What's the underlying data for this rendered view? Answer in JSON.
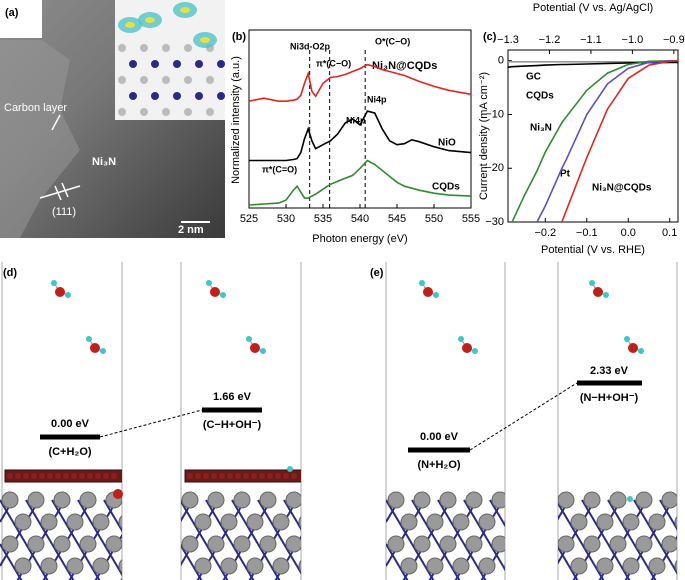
{
  "panel_a": {
    "label": "(a)",
    "carbon_layer": "Carbon layer",
    "phase": "Ni₃N",
    "plane": "(111)",
    "scale_bar": "2 nm"
  },
  "chart_data": [
    {
      "type": "line",
      "label": "(b)",
      "xlabel": "Photon energy (eV)",
      "ylabel": "Normalized intensity (a.u.)",
      "xlim": [
        525,
        555
      ],
      "xticks": [
        525,
        530,
        535,
        540,
        545,
        550,
        555
      ],
      "ylim": [
        0,
        180
      ],
      "x": [
        525,
        527,
        529,
        530,
        531,
        531.5,
        532,
        532.5,
        533,
        533.5,
        534,
        535,
        536,
        537,
        538,
        539,
        540,
        541,
        542,
        543,
        544,
        545,
        546,
        547,
        548,
        550,
        552,
        555
      ],
      "series": [
        {
          "name": "Ni₃N@CQDs",
          "color": "#e0261f",
          "values": [
            108,
            111,
            108,
            108,
            109,
            110,
            114,
            126,
            136,
            118,
            113,
            126,
            132,
            133,
            135,
            138,
            141,
            145,
            143,
            140,
            138,
            136,
            134,
            131,
            128,
            123,
            119,
            115
          ]
        },
        {
          "name": "NiO",
          "color": "#000000",
          "values": [
            48,
            48,
            48,
            48,
            49,
            50,
            56,
            70,
            80,
            68,
            60,
            64,
            68,
            75,
            86,
            90,
            84,
            98,
            96,
            80,
            68,
            64,
            65,
            69,
            67,
            62,
            58,
            56
          ]
        },
        {
          "name": "CQDs",
          "color": "#2e8b2e",
          "values": [
            3,
            4,
            5,
            8,
            18,
            22,
            16,
            10,
            10,
            12,
            14,
            19,
            24,
            27,
            30,
            33,
            40,
            48,
            44,
            38,
            32,
            26,
            22,
            20,
            18,
            15,
            13,
            12
          ]
        }
      ],
      "vlines": [
        533.2,
        535.9,
        540.7
      ],
      "annotations": [
        "Ni3d-O2p",
        "π*(C−O)",
        "O*(C−O)",
        "Ni4p",
        "Ni4p",
        "π*(C=O)"
      ]
    },
    {
      "type": "line",
      "label": "(c)",
      "xlabel": "Potential (V vs. RHE)",
      "x2label": "Potential (V vs. Ag/AgCl)",
      "ylabel": "Current density (mA cm⁻²)",
      "xlim": [
        -0.29,
        0.12
      ],
      "xticks": [
        {
          "value": -0.2,
          "label": "−0.2"
        },
        {
          "value": -0.1,
          "label": "−0.1"
        },
        {
          "value": 0,
          "label": "0.0"
        },
        0.1
      ],
      "x2lim": [
        -1.3,
        -0.89
      ],
      "x2ticks": [
        {
          "value": -1.3,
          "label": "−1.3"
        },
        {
          "value": -1.2,
          "label": "−1.2"
        },
        {
          "value": -1.1,
          "label": "−1.1"
        },
        {
          "value": -1.0,
          "label": "−1.0"
        },
        {
          "value": -0.9,
          "label": "−0.9"
        }
      ],
      "ylim": [
        -30,
        2
      ],
      "yticks": [
        {
          "value": -30,
          "label": "−30"
        },
        {
          "value": -20,
          "label": "−20"
        },
        {
          "value": -10,
          "label": "−10"
        },
        0
      ],
      "x": [
        -0.29,
        -0.28,
        -0.25,
        -0.22,
        -0.2,
        -0.16,
        -0.15,
        -0.1,
        -0.05,
        0,
        0.05,
        0.1,
        0.12
      ],
      "series": [
        {
          "name": "GC",
          "color": "#999999",
          "values": [
            -0.2,
            -0.2,
            -0.2,
            -0.2,
            -0.2,
            -0.2,
            -0.2,
            -0.2,
            -0.2,
            -0.2,
            -0.2,
            -0.2,
            -0.2
          ]
        },
        {
          "name": "CQDs",
          "color": "#000000",
          "values": [
            -1.2,
            -1.1,
            -1,
            -0.9,
            -0.8,
            -0.7,
            -0.7,
            -0.6,
            -0.5,
            -0.4,
            -0.35,
            -0.3,
            -0.3
          ]
        },
        {
          "name": "Ni₃N",
          "color": "#2e8b2e",
          "values": [
            null,
            -30,
            -25,
            -20.5,
            -17,
            -11.5,
            -10.5,
            -5.5,
            -2.3,
            -0.7,
            -0.1,
            0,
            0
          ]
        },
        {
          "name": "Pt",
          "color": "#5b4fc9",
          "values": [
            null,
            null,
            null,
            -30,
            -27,
            -20,
            -18.5,
            -10,
            -4.3,
            -1.4,
            -0.3,
            0,
            0
          ]
        },
        {
          "name": "Ni₃N@CQDs",
          "color": "#e0261f",
          "values": [
            null,
            null,
            null,
            null,
            null,
            -30,
            -28,
            -18,
            -9,
            -3.3,
            -0.8,
            -0.1,
            0
          ]
        }
      ]
    }
  ],
  "panel_d": {
    "label": "(d)",
    "levels": [
      {
        "energy": "0.00 eV",
        "state": "(C+H₂O)"
      },
      {
        "energy": "1.66 eV",
        "state": "(C−H+OH⁻)"
      }
    ]
  },
  "panel_e": {
    "label": "(e)",
    "levels": [
      {
        "energy": "0.00 eV",
        "state": "(N+H₂O)"
      },
      {
        "energy": "2.33 eV",
        "state": "(N−H+OH⁻)"
      }
    ]
  }
}
